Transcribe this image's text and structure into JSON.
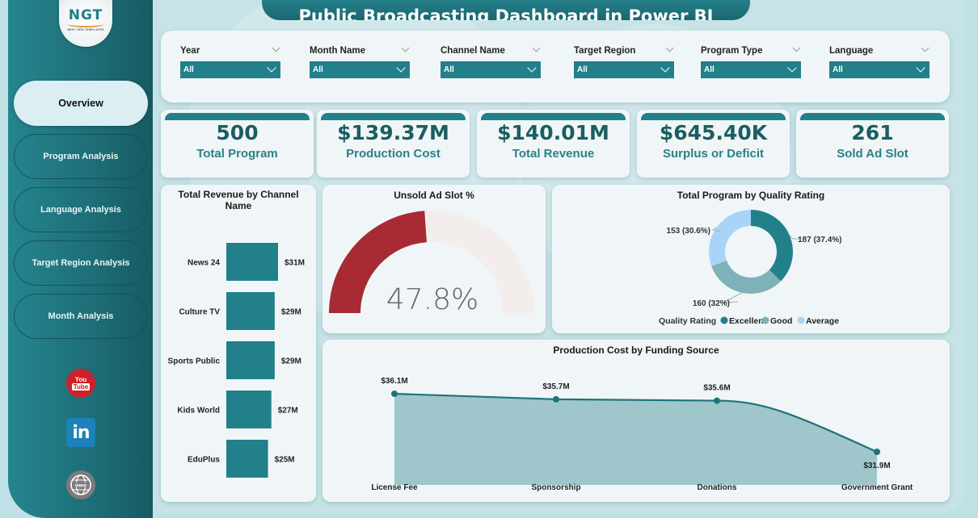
{
  "header": {
    "title": "Public Broadcasting Dashboard in Power BI"
  },
  "logo": {
    "mark": "NGT",
    "subtitle": "NEXT GEN TEMPLATES"
  },
  "sidebar": {
    "items": [
      {
        "label": "Overview",
        "active": true
      },
      {
        "label": "Program Analysis",
        "active": false
      },
      {
        "label": "Language Analysis",
        "active": false
      },
      {
        "label": "Target Region Analysis",
        "active": false
      },
      {
        "label": "Month Analysis",
        "active": false
      }
    ],
    "social": [
      {
        "icon": "youtube-icon",
        "top": "You",
        "bottom": "Tube"
      },
      {
        "icon": "linkedin-icon",
        "text": "in"
      },
      {
        "icon": "globe-www-icon",
        "text": "www"
      }
    ]
  },
  "slicers": [
    {
      "label": "Year",
      "value": "All"
    },
    {
      "label": "Month Name",
      "value": "All"
    },
    {
      "label": "Channel Name",
      "value": "All"
    },
    {
      "label": "Target Region",
      "value": "All"
    },
    {
      "label": "Program Type",
      "value": "All"
    },
    {
      "label": "Language",
      "value": "All"
    }
  ],
  "kpis": [
    {
      "value": "500",
      "label": "Total Program"
    },
    {
      "value": "$139.37M",
      "label": "Production Cost"
    },
    {
      "value": "$140.01M",
      "label": "Total Revenue"
    },
    {
      "value": "$645.40K",
      "label": "Surplus or Deficit"
    },
    {
      "value": "261",
      "label": "Sold Ad Slot"
    }
  ],
  "colors": {
    "accent": "#22808b",
    "gauge_fill": "#a82a35",
    "gauge_track": "#f3eeec",
    "excellent": "#22808b",
    "good": "#7eb1b8",
    "average": "#a9d4f7",
    "area_fill": "#9fc6cb",
    "area_line": "#1f737c"
  },
  "chart_data": [
    {
      "type": "bar",
      "orientation": "horizontal",
      "title_line1": "Total Revenue by Channel",
      "title_line2": "Name",
      "categories": [
        "News 24",
        "Culture TV",
        "Sports Public",
        "Kids World",
        "EduPlus"
      ],
      "values": [
        31,
        29,
        29,
        27,
        25
      ],
      "labels": [
        "$31M",
        "$29M",
        "$29M",
        "$27M",
        "$25M"
      ],
      "unit": "$M"
    },
    {
      "type": "gauge",
      "title": "Unsold Ad Slot %",
      "value": 47.8,
      "max": 100,
      "label": "47.8%"
    },
    {
      "type": "pie",
      "variant": "donut",
      "title": "Total Program by Quality Rating",
      "legend_title": "Quality Rating",
      "legend_position": "bottom",
      "categories": [
        "Excellent",
        "Good",
        "Average"
      ],
      "values": [
        187,
        160,
        153
      ],
      "labels": [
        "187 (37.4%)",
        "160 (32%)",
        "153 (30.6%)"
      ]
    },
    {
      "type": "area",
      "title": "Production Cost by Funding Source",
      "categories": [
        "License Fee",
        "Sponsorship",
        "Donations",
        "Government Grant"
      ],
      "values": [
        36.1,
        35.7,
        35.6,
        31.9
      ],
      "labels": [
        "$36.1M",
        "$35.7M",
        "$35.6M",
        "$31.9M"
      ],
      "unit": "$M",
      "ylim": [
        0,
        40
      ]
    }
  ]
}
